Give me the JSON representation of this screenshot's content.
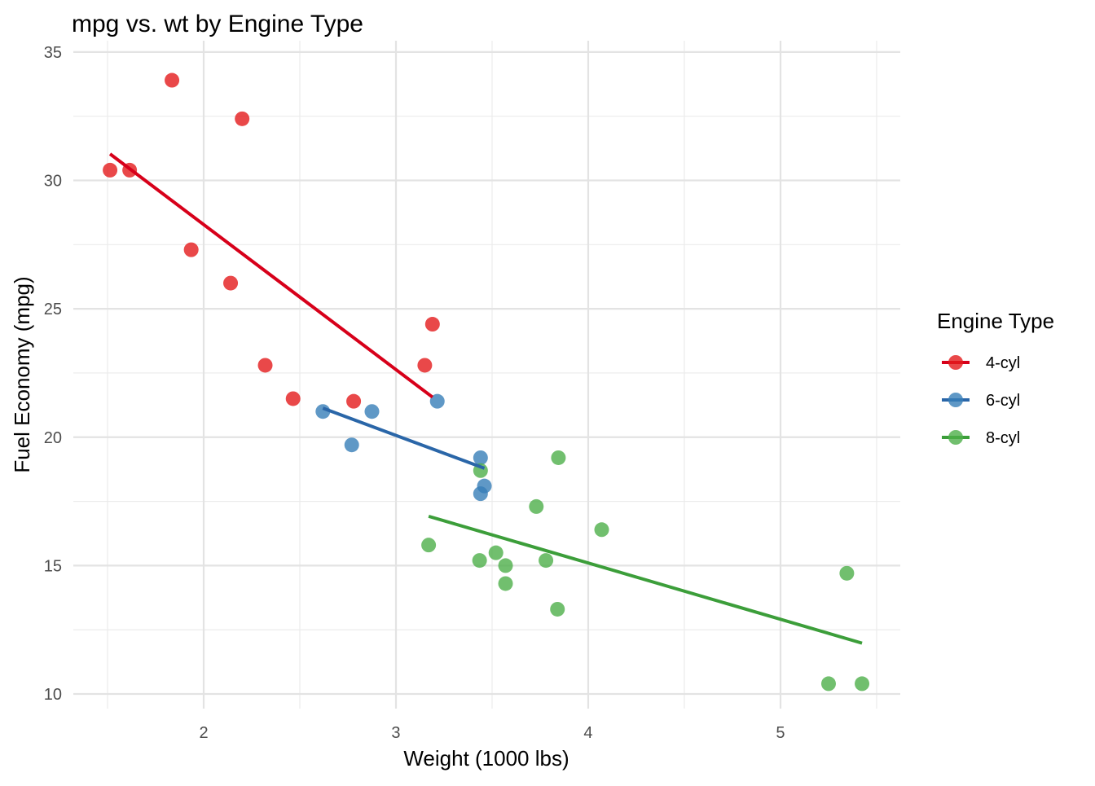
{
  "chart_data": {
    "type": "scatter",
    "title": "mpg vs. wt by Engine Type",
    "xlabel": "Weight (1000 lbs)",
    "ylabel": "Fuel Economy (mpg)",
    "xlim": [
      1.322,
      5.623
    ],
    "ylim": [
      9.43,
      35.44
    ],
    "xticks": [
      2,
      3,
      4,
      5
    ],
    "yticks": [
      10,
      15,
      20,
      25,
      30,
      35
    ],
    "grid": true,
    "legend": {
      "title": "Engine Type",
      "placement": "right"
    },
    "series": [
      {
        "name": "4-cyl",
        "color": "#E41A1C",
        "points": [
          [
            2.32,
            22.8
          ],
          [
            3.19,
            24.4
          ],
          [
            3.15,
            22.8
          ],
          [
            2.2,
            32.4
          ],
          [
            1.615,
            30.4
          ],
          [
            1.835,
            33.9
          ],
          [
            2.465,
            21.5
          ],
          [
            1.935,
            27.3
          ],
          [
            2.14,
            26.0
          ],
          [
            1.513,
            30.4
          ],
          [
            2.78,
            21.4
          ]
        ],
        "fit": [
          [
            1.513,
            31.03
          ],
          [
            3.19,
            21.56
          ]
        ]
      },
      {
        "name": "6-cyl",
        "color": "#377EB8",
        "points": [
          [
            2.62,
            21.0
          ],
          [
            2.875,
            21.0
          ],
          [
            3.215,
            21.4
          ],
          [
            3.46,
            18.1
          ],
          [
            3.44,
            19.2
          ],
          [
            3.44,
            17.8
          ],
          [
            2.77,
            19.7
          ]
        ],
        "fit": [
          [
            2.62,
            21.13
          ],
          [
            3.46,
            18.79
          ]
        ]
      },
      {
        "name": "8-cyl",
        "color": "#4DAF4A",
        "points": [
          [
            3.44,
            18.7
          ],
          [
            3.57,
            14.3
          ],
          [
            4.07,
            16.4
          ],
          [
            3.73,
            17.3
          ],
          [
            3.78,
            15.2
          ],
          [
            5.25,
            10.4
          ],
          [
            5.424,
            10.4
          ],
          [
            5.345,
            14.7
          ],
          [
            3.52,
            15.5
          ],
          [
            3.435,
            15.2
          ],
          [
            3.84,
            13.3
          ],
          [
            3.845,
            19.2
          ],
          [
            3.17,
            15.8
          ],
          [
            3.57,
            15.0
          ]
        ],
        "fit": [
          [
            3.17,
            16.92
          ],
          [
            5.424,
            11.98
          ]
        ]
      }
    ]
  }
}
